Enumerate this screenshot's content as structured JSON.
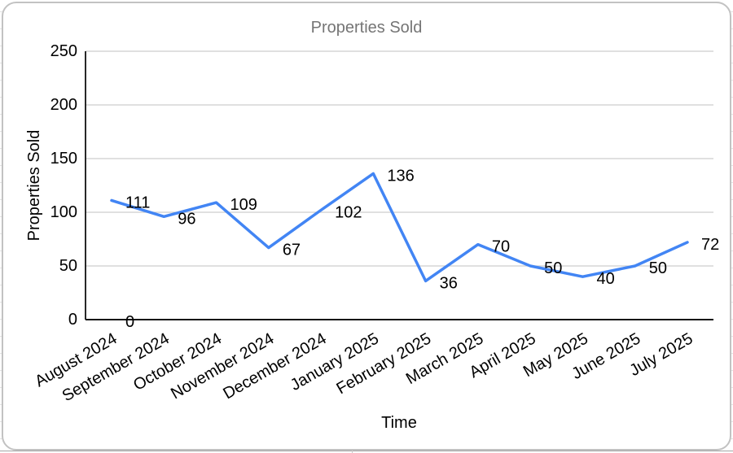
{
  "chart_data": {
    "type": "line",
    "title": "Properties Sold",
    "xlabel": "Time",
    "ylabel": "Properties Sold",
    "categories": [
      "August 2024",
      "September 2024",
      "October 2024",
      "November 2024",
      "December 2024",
      "January 2025",
      "February 2025",
      "March 2025",
      "April 2025",
      "May 2025",
      "June 2025",
      "July 2025"
    ],
    "series": [
      {
        "name": "Properties Sold",
        "values": [
          111,
          96,
          109,
          67,
          102,
          136,
          36,
          70,
          50,
          40,
          50,
          72
        ]
      }
    ],
    "data_labels": [
      "111",
      "96",
      "109",
      "67",
      "102",
      "136",
      "36",
      "70",
      "50",
      "40",
      "50",
      "72"
    ],
    "annotations": [
      {
        "text": "0",
        "category_index": 0,
        "value": 0
      }
    ],
    "ylim": [
      0,
      250
    ],
    "yticks": [
      "0",
      "50",
      "100",
      "150",
      "200",
      "250"
    ],
    "ytick_values": [
      0,
      50,
      100,
      150,
      200,
      250
    ],
    "grid": true,
    "legend": "none",
    "x_label_angle_deg": -30
  },
  "style": {
    "line_color": "#4285f4",
    "grid_color": "#cdcdcd",
    "axis_color": "#111111",
    "title_color": "#757575",
    "label_color": "#000000",
    "frame_border_color": "#c2c2c2"
  }
}
